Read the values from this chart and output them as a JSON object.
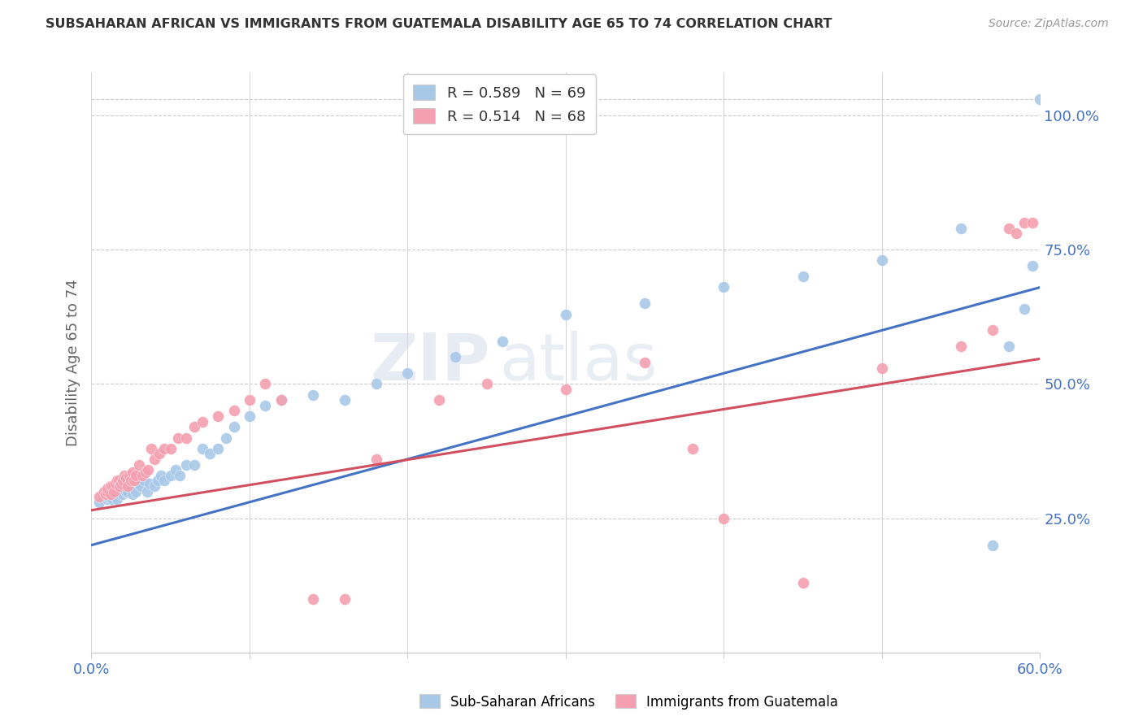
{
  "title": "SUBSAHARAN AFRICAN VS IMMIGRANTS FROM GUATEMALA DISABILITY AGE 65 TO 74 CORRELATION CHART",
  "source": "Source: ZipAtlas.com",
  "ylabel": "Disability Age 65 to 74",
  "right_yticks": [
    "25.0%",
    "50.0%",
    "75.0%",
    "100.0%"
  ],
  "right_ytick_vals": [
    0.25,
    0.5,
    0.75,
    1.0
  ],
  "xlim": [
    0.0,
    0.6
  ],
  "ylim": [
    0.0,
    1.08
  ],
  "blue_color": "#a8c8e8",
  "pink_color": "#f4a0b0",
  "blue_line_color": "#4472c4",
  "pink_line_color": "#d05060",
  "watermark_zip": "ZIP",
  "watermark_atlas": "atlas",
  "blue_scatter_x": [
    0.005,
    0.008,
    0.009,
    0.01,
    0.01,
    0.01,
    0.012,
    0.012,
    0.013,
    0.013,
    0.014,
    0.015,
    0.015,
    0.016,
    0.016,
    0.017,
    0.018,
    0.018,
    0.019,
    0.02,
    0.02,
    0.021,
    0.022,
    0.022,
    0.023,
    0.024,
    0.025,
    0.026,
    0.027,
    0.028,
    0.03,
    0.031,
    0.033,
    0.035,
    0.037,
    0.04,
    0.042,
    0.044,
    0.046,
    0.05,
    0.053,
    0.056,
    0.06,
    0.065,
    0.07,
    0.075,
    0.08,
    0.085,
    0.09,
    0.1,
    0.11,
    0.12,
    0.14,
    0.16,
    0.18,
    0.2,
    0.23,
    0.26,
    0.3,
    0.35,
    0.4,
    0.45,
    0.5,
    0.55,
    0.57,
    0.58,
    0.59,
    0.595,
    0.6
  ],
  "blue_scatter_y": [
    0.28,
    0.29,
    0.3,
    0.285,
    0.29,
    0.3,
    0.3,
    0.295,
    0.3,
    0.285,
    0.31,
    0.29,
    0.3,
    0.3,
    0.285,
    0.31,
    0.295,
    0.3,
    0.31,
    0.3,
    0.295,
    0.31,
    0.3,
    0.315,
    0.3,
    0.31,
    0.31,
    0.295,
    0.32,
    0.3,
    0.315,
    0.31,
    0.32,
    0.3,
    0.315,
    0.31,
    0.32,
    0.33,
    0.32,
    0.33,
    0.34,
    0.33,
    0.35,
    0.35,
    0.38,
    0.37,
    0.38,
    0.4,
    0.42,
    0.44,
    0.46,
    0.47,
    0.48,
    0.47,
    0.5,
    0.52,
    0.55,
    0.58,
    0.63,
    0.65,
    0.68,
    0.7,
    0.73,
    0.79,
    0.2,
    0.57,
    0.64,
    0.72,
    1.03
  ],
  "pink_scatter_x": [
    0.005,
    0.008,
    0.009,
    0.01,
    0.01,
    0.012,
    0.012,
    0.013,
    0.014,
    0.015,
    0.016,
    0.017,
    0.018,
    0.019,
    0.02,
    0.021,
    0.022,
    0.023,
    0.024,
    0.025,
    0.026,
    0.027,
    0.028,
    0.03,
    0.032,
    0.034,
    0.036,
    0.038,
    0.04,
    0.043,
    0.046,
    0.05,
    0.055,
    0.06,
    0.065,
    0.07,
    0.08,
    0.09,
    0.1,
    0.11,
    0.12,
    0.14,
    0.16,
    0.18,
    0.22,
    0.25,
    0.3,
    0.35,
    0.38,
    0.4,
    0.45,
    0.5,
    0.55,
    0.57,
    0.58,
    0.585,
    0.59,
    0.595
  ],
  "pink_scatter_y": [
    0.29,
    0.3,
    0.295,
    0.3,
    0.305,
    0.31,
    0.295,
    0.31,
    0.3,
    0.315,
    0.32,
    0.32,
    0.31,
    0.315,
    0.32,
    0.33,
    0.325,
    0.31,
    0.33,
    0.32,
    0.335,
    0.32,
    0.33,
    0.35,
    0.33,
    0.335,
    0.34,
    0.38,
    0.36,
    0.37,
    0.38,
    0.38,
    0.4,
    0.4,
    0.42,
    0.43,
    0.44,
    0.45,
    0.47,
    0.5,
    0.47,
    0.1,
    0.1,
    0.36,
    0.47,
    0.5,
    0.49,
    0.54,
    0.38,
    0.25,
    0.13,
    0.53,
    0.57,
    0.6,
    0.79,
    0.78,
    0.8,
    0.8
  ]
}
